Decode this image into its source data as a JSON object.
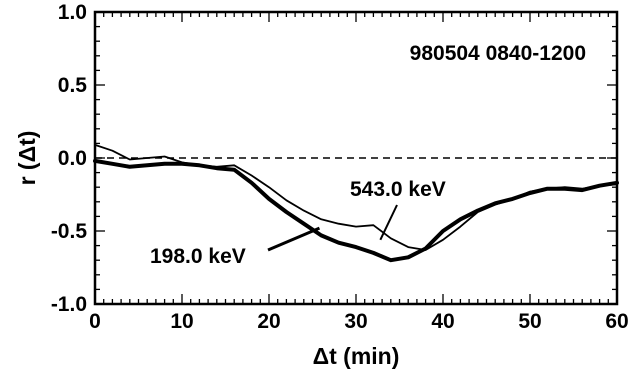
{
  "chart_data": {
    "type": "line",
    "title": "",
    "xlabel": "Δt (min)",
    "ylabel": "r (Δt)",
    "xlim": [
      0,
      60
    ],
    "ylim": [
      -1.0,
      1.0
    ],
    "grid": false,
    "xticks": [
      0,
      10,
      20,
      30,
      40,
      50,
      60
    ],
    "yticks": [
      -1.0,
      -0.5,
      0.0,
      0.5,
      1.0
    ],
    "xtick_labels": [
      "0",
      "10",
      "20",
      "30",
      "40",
      "50",
      "60"
    ],
    "ytick_labels": [
      "-1.0",
      "-0.5",
      "0.0",
      "0.5",
      "1.0"
    ],
    "reference_line": {
      "y": 0.0,
      "style": "dashed"
    },
    "annotation": "980504  0840-1200",
    "series": [
      {
        "name": "198.0 keV",
        "style": "thick",
        "x": [
          0,
          2,
          4,
          6,
          8,
          10,
          12,
          14,
          16,
          18,
          20,
          22,
          24,
          26,
          28,
          30,
          32,
          34,
          36,
          38,
          40,
          42,
          44,
          46,
          48,
          50,
          52,
          54,
          56,
          58,
          60
        ],
        "y": [
          -0.02,
          -0.04,
          -0.06,
          -0.05,
          -0.04,
          -0.04,
          -0.05,
          -0.07,
          -0.08,
          -0.17,
          -0.28,
          -0.37,
          -0.45,
          -0.53,
          -0.58,
          -0.61,
          -0.65,
          -0.7,
          -0.68,
          -0.62,
          -0.5,
          -0.42,
          -0.36,
          -0.31,
          -0.28,
          -0.24,
          -0.21,
          -0.21,
          -0.22,
          -0.19,
          -0.17
        ]
      },
      {
        "name": "543.0 keV",
        "style": "thin",
        "x": [
          0,
          2,
          4,
          6,
          8,
          10,
          12,
          14,
          16,
          18,
          20,
          22,
          24,
          26,
          28,
          30,
          32,
          34,
          36,
          38,
          40,
          42,
          44,
          46,
          48,
          50,
          52,
          54,
          56,
          58,
          60
        ],
        "y": [
          0.09,
          0.05,
          -0.01,
          0.0,
          0.01,
          -0.03,
          -0.05,
          -0.06,
          -0.05,
          -0.12,
          -0.2,
          -0.29,
          -0.36,
          -0.42,
          -0.45,
          -0.47,
          -0.46,
          -0.55,
          -0.61,
          -0.63,
          -0.56,
          -0.47,
          -0.37,
          -0.32,
          -0.28,
          -0.23,
          -0.21,
          -0.2,
          -0.21,
          -0.19,
          -0.18
        ]
      }
    ]
  }
}
